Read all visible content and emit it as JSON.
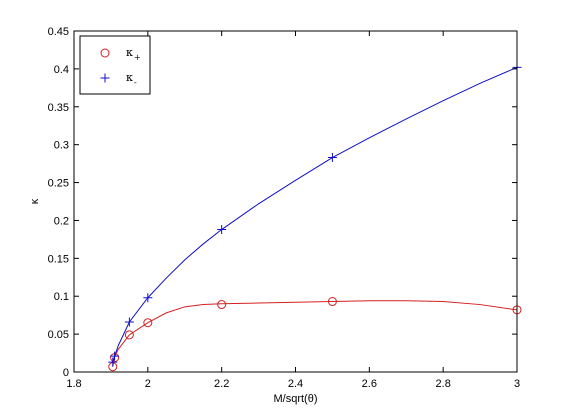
{
  "chart_data": {
    "type": "line",
    "xlabel": "M/sqrt(θ)",
    "ylabel": "κ",
    "xlim": [
      1.8,
      3.0
    ],
    "ylim": [
      0,
      0.45
    ],
    "xticks": [
      1.8,
      2.0,
      2.2,
      2.4,
      2.6,
      2.8,
      3.0
    ],
    "xtick_labels": [
      "1.8",
      "2",
      "2.2",
      "2.4",
      "2.6",
      "2.8",
      "3"
    ],
    "yticks": [
      0,
      0.05,
      0.1,
      0.15,
      0.2,
      0.25,
      0.3,
      0.35,
      0.4,
      0.45
    ],
    "ytick_labels": [
      "0",
      "0.05",
      "0.1",
      "0.15",
      "0.2",
      "0.25",
      "0.3",
      "0.35",
      "0.4",
      "0.45"
    ],
    "grid": false,
    "legend_position": "top-left",
    "series": [
      {
        "name": "κ",
        "subscript": "+",
        "color": "#d42020",
        "marker": "circle",
        "points": [
          {
            "x": 1.905,
            "y": 0.007
          },
          {
            "x": 1.91,
            "y": 0.019
          },
          {
            "x": 1.95,
            "y": 0.049
          },
          {
            "x": 2.0,
            "y": 0.065
          },
          {
            "x": 2.2,
            "y": 0.089
          },
          {
            "x": 2.5,
            "y": 0.093
          },
          {
            "x": 3.0,
            "y": 0.082
          }
        ],
        "curve": [
          {
            "x": 1.905,
            "y": 0.007
          },
          {
            "x": 1.91,
            "y": 0.02
          },
          {
            "x": 1.92,
            "y": 0.03
          },
          {
            "x": 1.95,
            "y": 0.049
          },
          {
            "x": 2.0,
            "y": 0.065
          },
          {
            "x": 2.05,
            "y": 0.078
          },
          {
            "x": 2.1,
            "y": 0.086
          },
          {
            "x": 2.15,
            "y": 0.089
          },
          {
            "x": 2.2,
            "y": 0.09
          },
          {
            "x": 2.3,
            "y": 0.091
          },
          {
            "x": 2.4,
            "y": 0.092
          },
          {
            "x": 2.5,
            "y": 0.093
          },
          {
            "x": 2.6,
            "y": 0.094
          },
          {
            "x": 2.7,
            "y": 0.094
          },
          {
            "x": 2.8,
            "y": 0.093
          },
          {
            "x": 2.9,
            "y": 0.089
          },
          {
            "x": 3.0,
            "y": 0.082
          }
        ]
      },
      {
        "name": "κ",
        "subscript": "-",
        "color": "#1010c8",
        "marker": "plus",
        "points": [
          {
            "x": 1.905,
            "y": 0.013
          },
          {
            "x": 1.91,
            "y": 0.021
          },
          {
            "x": 1.95,
            "y": 0.066
          },
          {
            "x": 2.0,
            "y": 0.098
          },
          {
            "x": 2.2,
            "y": 0.188
          },
          {
            "x": 2.5,
            "y": 0.283
          },
          {
            "x": 3.0,
            "y": 0.402
          }
        ],
        "curve": [
          {
            "x": 1.905,
            "y": 0.013
          },
          {
            "x": 1.91,
            "y": 0.021
          },
          {
            "x": 1.92,
            "y": 0.035
          },
          {
            "x": 1.95,
            "y": 0.066
          },
          {
            "x": 2.0,
            "y": 0.098
          },
          {
            "x": 2.05,
            "y": 0.124
          },
          {
            "x": 2.1,
            "y": 0.148
          },
          {
            "x": 2.15,
            "y": 0.169
          },
          {
            "x": 2.2,
            "y": 0.188
          },
          {
            "x": 2.3,
            "y": 0.222
          },
          {
            "x": 2.4,
            "y": 0.253
          },
          {
            "x": 2.5,
            "y": 0.283
          },
          {
            "x": 2.6,
            "y": 0.309
          },
          {
            "x": 2.7,
            "y": 0.334
          },
          {
            "x": 2.8,
            "y": 0.358
          },
          {
            "x": 2.9,
            "y": 0.381
          },
          {
            "x": 3.0,
            "y": 0.402
          }
        ]
      }
    ]
  }
}
